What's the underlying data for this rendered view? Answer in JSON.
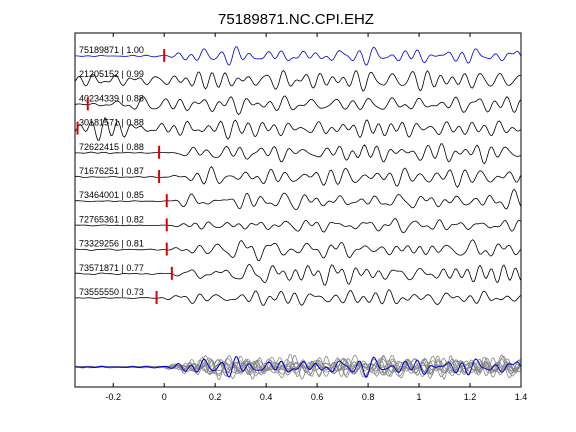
{
  "chart_data": {
    "type": "line",
    "title": "75189871.NC.CPI.EHZ",
    "xlabel": "",
    "ylabel": "",
    "xlim": [
      -0.35,
      1.4
    ],
    "xticks": [
      -0.2,
      0,
      0.2,
      0.4,
      0.6,
      0.8,
      1,
      1.2,
      1.4
    ],
    "xtick_labels": [
      "-0.2",
      "0",
      "0.2",
      "0.4",
      "0.6",
      "0.8",
      "1",
      "1.2",
      "1.4"
    ],
    "grid": false,
    "reference_color": "#0000cc",
    "trace_color": "#000000",
    "pick_color": "#dd0000",
    "overlay_color": "#888888",
    "traces": [
      {
        "label": "75189871 | 1.00",
        "pick": 0.0,
        "reference": true
      },
      {
        "label": "21205152 | 0.99",
        "pick": null,
        "reference": false
      },
      {
        "label": "40234339 | 0.88",
        "pick": -0.3,
        "reference": false
      },
      {
        "label": "30181571 | 0.88",
        "pick": -0.34,
        "reference": false
      },
      {
        "label": "72622415 | 0.88",
        "pick": -0.02,
        "reference": false
      },
      {
        "label": "71676251 | 0.87",
        "pick": -0.02,
        "reference": false
      },
      {
        "label": "73464001 | 0.85",
        "pick": 0.01,
        "reference": false
      },
      {
        "label": "72765361 | 0.82",
        "pick": 0.01,
        "reference": false
      },
      {
        "label": "73329256 | 0.81",
        "pick": 0.01,
        "reference": false
      },
      {
        "label": "73571871 | 0.77",
        "pick": 0.03,
        "reference": false
      },
      {
        "label": "73555550 | 0.73",
        "pick": -0.03,
        "reference": false
      }
    ]
  }
}
